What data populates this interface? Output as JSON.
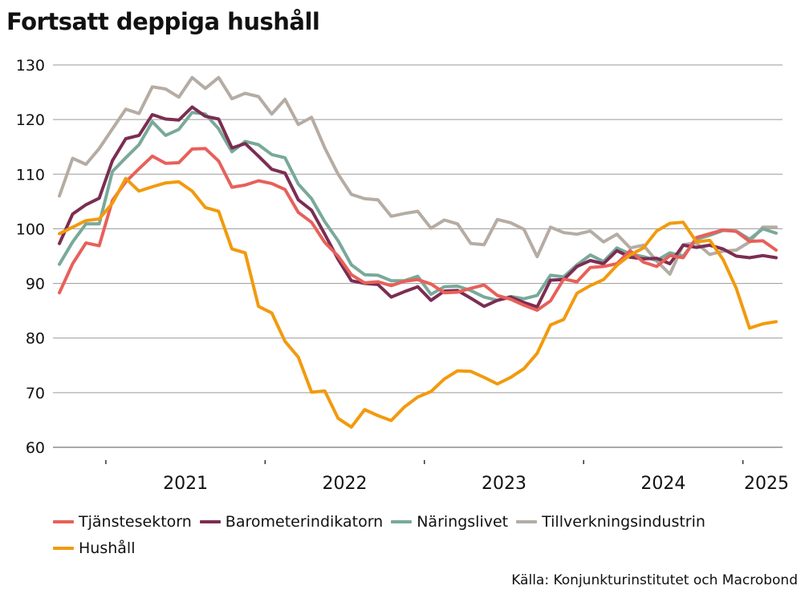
{
  "title": "Fortsatt deppiga hushåll",
  "source": "Källa: Konjunkturinstitutet och Macrobond",
  "chart_data": {
    "type": "line",
    "title": "Fortsatt deppiga hushåll",
    "xlabel": "",
    "ylabel": "",
    "ylim": [
      60,
      130
    ],
    "yticks": [
      60,
      70,
      80,
      90,
      100,
      110,
      120,
      130
    ],
    "xlim": [
      "2020-09",
      "2025-03"
    ],
    "xticks": [
      "2021",
      "2022",
      "2023",
      "2024",
      "2025"
    ],
    "grid": true,
    "legend_position": "bottom",
    "x": [
      "2020-09",
      "2020-10",
      "2020-11",
      "2020-12",
      "2021-01",
      "2021-02",
      "2021-03",
      "2021-04",
      "2021-05",
      "2021-06",
      "2021-07",
      "2021-08",
      "2021-09",
      "2021-10",
      "2021-11",
      "2021-12",
      "2022-01",
      "2022-02",
      "2022-03",
      "2022-04",
      "2022-05",
      "2022-06",
      "2022-07",
      "2022-08",
      "2022-09",
      "2022-10",
      "2022-11",
      "2022-12",
      "2023-01",
      "2023-02",
      "2023-03",
      "2023-04",
      "2023-05",
      "2023-06",
      "2023-07",
      "2023-08",
      "2023-09",
      "2023-10",
      "2023-11",
      "2023-12",
      "2024-01",
      "2024-02",
      "2024-03",
      "2024-04",
      "2024-05",
      "2024-06",
      "2024-07",
      "2024-08",
      "2024-09",
      "2024-10",
      "2024-11",
      "2024-12",
      "2025-01",
      "2025-02",
      "2025-03"
    ],
    "series": [
      {
        "name": "Tjänstesektorn",
        "color": "#e8605a",
        "values": [
          88.3,
          93.6,
          97.4,
          96.9,
          105.2,
          108.6,
          111.0,
          113.3,
          112.0,
          112.1,
          114.6,
          114.7,
          112.4,
          107.6,
          108.0,
          108.8,
          108.3,
          107.2,
          103.0,
          101.2,
          97.5,
          95.0,
          91.6,
          90.1,
          90.3,
          89.6,
          90.4,
          90.7,
          89.9,
          88.3,
          88.4,
          89.1,
          89.7,
          87.8,
          87.1,
          86.0,
          85.1,
          86.8,
          90.8,
          90.3,
          92.9,
          93.1,
          93.6,
          96.0,
          93.9,
          93.1,
          95.1,
          94.7,
          98.4,
          99.1,
          99.8,
          99.5,
          97.7,
          97.8,
          96.1
        ]
      },
      {
        "name": "Barometerindikatorn",
        "color": "#7b2d52",
        "values": [
          97.3,
          102.7,
          104.4,
          105.6,
          112.5,
          116.5,
          117.1,
          120.9,
          120.1,
          119.9,
          122.3,
          120.6,
          120.1,
          114.8,
          115.6,
          113.3,
          110.9,
          110.2,
          105.3,
          103.4,
          99.0,
          94.4,
          90.5,
          90.0,
          89.8,
          87.5,
          88.5,
          89.4,
          86.9,
          88.6,
          88.7,
          87.3,
          85.8,
          86.9,
          87.5,
          86.5,
          85.7,
          90.6,
          90.7,
          93.1,
          94.2,
          93.6,
          96.0,
          94.8,
          94.5,
          94.6,
          93.6,
          97.0,
          96.6,
          97.0,
          96.3,
          95.0,
          94.7,
          95.1,
          94.7
        ]
      },
      {
        "name": "Näringslivet",
        "color": "#79a99a",
        "values": [
          93.5,
          97.6,
          100.9,
          100.9,
          110.5,
          113.0,
          115.4,
          119.6,
          117.1,
          118.2,
          121.3,
          121.0,
          118.3,
          114.1,
          116.0,
          115.4,
          113.6,
          113.0,
          108.2,
          105.5,
          101.3,
          97.8,
          93.4,
          91.6,
          91.5,
          90.5,
          90.5,
          91.3,
          88.0,
          89.4,
          89.5,
          88.7,
          87.5,
          86.9,
          87.6,
          87.2,
          87.8,
          91.5,
          91.2,
          93.4,
          95.2,
          94.0,
          96.5,
          95.4,
          94.9,
          94.2,
          95.6,
          95.0,
          98.1,
          98.8,
          99.7,
          99.6,
          98.1,
          100.0,
          99.2
        ]
      },
      {
        "name": "Tillverkningsindustrin",
        "color": "#b5aca4",
        "values": [
          106.0,
          112.9,
          111.8,
          114.7,
          118.3,
          121.9,
          121.1,
          126.0,
          125.6,
          124.1,
          127.7,
          125.7,
          127.7,
          123.8,
          124.8,
          124.2,
          121.0,
          123.7,
          119.1,
          120.4,
          114.8,
          110.0,
          106.3,
          105.5,
          105.3,
          102.3,
          102.8,
          103.2,
          100.1,
          101.6,
          100.9,
          97.3,
          97.1,
          101.7,
          101.1,
          99.9,
          94.9,
          100.3,
          99.3,
          99.0,
          99.6,
          97.6,
          99.0,
          96.5,
          97.0,
          94.1,
          91.7,
          97.1,
          97.4,
          95.3,
          95.9,
          96.1,
          97.6,
          100.3,
          100.3
        ]
      },
      {
        "name": "Hushåll",
        "color": "#f29a0e",
        "values": [
          99.1,
          100.3,
          101.5,
          101.8,
          104.7,
          109.2,
          106.9,
          107.7,
          108.4,
          108.6,
          106.9,
          103.9,
          103.2,
          96.3,
          95.6,
          85.8,
          84.6,
          79.4,
          76.5,
          70.1,
          70.3,
          65.3,
          63.7,
          66.9,
          65.8,
          64.9,
          67.4,
          69.2,
          70.2,
          72.5,
          74.0,
          73.9,
          72.8,
          71.6,
          72.8,
          74.4,
          77.2,
          82.4,
          83.4,
          88.2,
          89.6,
          90.7,
          93.3,
          95.2,
          96.5,
          99.6,
          101.0,
          101.2,
          97.6,
          97.9,
          94.4,
          89.1,
          81.8,
          82.6,
          83.0
        ]
      }
    ]
  }
}
